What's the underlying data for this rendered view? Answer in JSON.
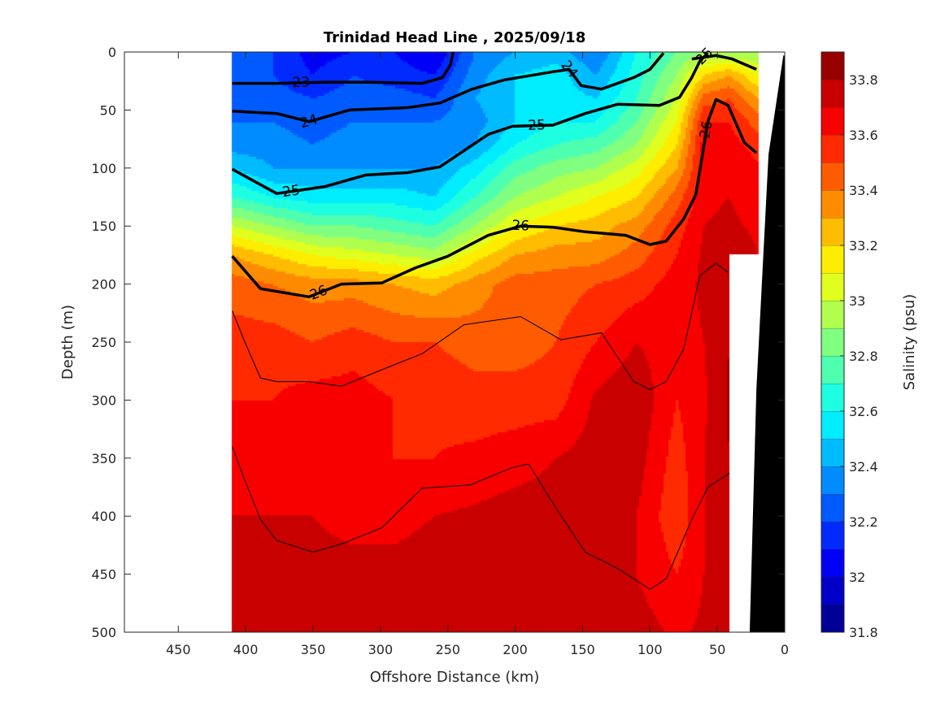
{
  "chart_data": {
    "type": "heatmap",
    "subtype": "filled-contour-section",
    "title": "Trinidad Head Line , 2025/09/18",
    "xlabel": "Offshore Distance (km)",
    "ylabel": "Depth (m)",
    "colorbar_label": "Salinity (psu)",
    "colormap": "jet",
    "xlim": [
      0,
      490
    ],
    "x_reversed": true,
    "ylim": [
      0,
      500
    ],
    "y_reversed": true,
    "clim": [
      31.8,
      33.9
    ],
    "level_step": 0.1,
    "xticks": [
      450,
      400,
      350,
      300,
      250,
      200,
      150,
      100,
      50,
      0
    ],
    "yticks": [
      0,
      50,
      100,
      150,
      200,
      250,
      300,
      350,
      400,
      450,
      500
    ],
    "cticks": [
      "31.8",
      "32",
      "32.2",
      "32.4",
      "32.6",
      "32.8",
      "33",
      "33.2",
      "33.4",
      "33.6",
      "33.8"
    ],
    "grid": false,
    "salinity": {
      "distance_km": [
        410,
        380,
        350,
        320,
        290,
        260,
        230,
        200,
        170,
        140,
        110,
        80,
        60,
        41,
        20
      ],
      "depth_m": [
        0,
        20,
        40,
        60,
        80,
        100,
        125,
        150,
        175,
        200,
        250,
        300,
        350,
        400,
        450,
        500
      ],
      "values": [
        [
          32.3,
          32.3,
          32.3,
          32.3,
          32.35,
          32.5,
          32.7,
          33.0,
          33.3,
          33.45,
          33.55,
          33.6,
          33.65,
          33.7,
          33.75,
          33.8
        ],
        [
          32.2,
          32.2,
          32.25,
          32.3,
          32.35,
          32.4,
          32.6,
          32.9,
          33.2,
          33.4,
          33.55,
          33.6,
          33.65,
          33.7,
          33.72,
          33.75
        ],
        [
          32.05,
          32.1,
          32.2,
          32.25,
          32.3,
          32.4,
          32.55,
          32.8,
          33.1,
          33.35,
          33.5,
          33.65,
          33.7,
          33.7,
          33.72,
          33.75
        ],
        [
          32.1,
          32.2,
          32.25,
          32.3,
          32.35,
          32.4,
          32.55,
          32.8,
          33.05,
          33.35,
          33.55,
          33.65,
          33.65,
          33.68,
          33.72,
          33.75
        ],
        [
          32.1,
          32.15,
          32.25,
          32.3,
          32.35,
          32.4,
          32.55,
          32.75,
          33.0,
          33.3,
          33.5,
          33.6,
          33.6,
          33.65,
          33.75,
          33.78
        ],
        [
          32.0,
          32.1,
          32.2,
          32.3,
          32.3,
          32.4,
          32.5,
          32.7,
          32.95,
          33.25,
          33.5,
          33.58,
          33.6,
          33.7,
          33.78,
          33.8
        ],
        [
          32.3,
          32.35,
          32.4,
          32.35,
          32.4,
          32.55,
          32.7,
          32.9,
          33.15,
          33.35,
          33.45,
          33.55,
          33.62,
          33.72,
          33.78,
          33.8
        ],
        [
          32.4,
          32.5,
          32.5,
          32.5,
          32.6,
          32.75,
          32.9,
          33.1,
          33.3,
          33.45,
          33.45,
          33.55,
          33.65,
          33.75,
          33.78,
          33.8
        ],
        [
          32.45,
          32.55,
          32.55,
          32.6,
          32.7,
          32.85,
          33.0,
          33.2,
          33.35,
          33.45,
          33.5,
          33.55,
          33.7,
          33.75,
          33.75,
          33.75
        ],
        [
          32.3,
          32.4,
          32.5,
          32.6,
          32.75,
          32.9,
          33.1,
          33.25,
          33.35,
          33.5,
          33.6,
          33.72,
          33.75,
          33.72,
          33.7,
          33.72
        ],
        [
          32.6,
          32.65,
          32.7,
          32.8,
          32.9,
          33.05,
          33.2,
          33.35,
          33.45,
          33.55,
          33.7,
          33.78,
          33.75,
          33.7,
          33.7,
          33.75
        ],
        [
          32.8,
          32.9,
          33.0,
          33.1,
          33.2,
          33.3,
          33.45,
          33.55,
          33.6,
          33.65,
          33.65,
          33.6,
          33.55,
          33.52,
          33.6,
          33.68
        ],
        [
          32.9,
          33.2,
          33.45,
          33.6,
          33.65,
          33.65,
          33.68,
          33.7,
          33.72,
          33.72,
          33.7,
          33.68,
          33.7,
          33.7,
          33.7,
          33.72
        ],
        [
          32.9,
          33.3,
          33.5,
          33.6,
          33.65,
          33.7,
          33.7,
          33.72,
          33.78,
          33.8,
          33.8,
          33.82,
          33.8,
          33.75,
          33.7,
          33.7
        ],
        [
          32.9,
          33.1,
          33.3,
          33.45,
          33.55,
          33.62,
          33.65,
          33.68,
          33.7,
          null,
          null,
          null,
          null,
          null,
          null,
          null
        ]
      ]
    },
    "density_contours": [
      {
        "level": "23",
        "points": [
          [
            410,
            27
          ],
          [
            377,
            27
          ],
          [
            341,
            26
          ],
          [
            311,
            26
          ],
          [
            269,
            27
          ],
          [
            254,
            22
          ],
          [
            248,
            11
          ],
          [
            246,
            0
          ]
        ]
      },
      {
        "level": "24",
        "points": [
          [
            410,
            51
          ],
          [
            377,
            53
          ],
          [
            353,
            60
          ],
          [
            323,
            50
          ],
          [
            280,
            48
          ],
          [
            256,
            44
          ],
          [
            232,
            32
          ],
          [
            208,
            24
          ],
          [
            172,
            17
          ],
          [
            160,
            15
          ],
          [
            151,
            29
          ],
          [
            136,
            32
          ],
          [
            112,
            22
          ],
          [
            100,
            15
          ],
          [
            90,
            1
          ]
        ]
      },
      {
        "level": "24",
        "points": [
          [
            69,
            6
          ],
          [
            51,
            3
          ],
          [
            39,
            6
          ],
          [
            21,
            15
          ]
        ]
      },
      {
        "level": "25",
        "points": [
          [
            410,
            101
          ],
          [
            377,
            122
          ],
          [
            341,
            116
          ],
          [
            311,
            106
          ],
          [
            280,
            104
          ],
          [
            256,
            99
          ],
          [
            238,
            85
          ],
          [
            220,
            71
          ],
          [
            202,
            64
          ],
          [
            172,
            63
          ],
          [
            148,
            53
          ],
          [
            124,
            45
          ],
          [
            93,
            46
          ],
          [
            78,
            39
          ],
          [
            69,
            22
          ],
          [
            63,
            8
          ],
          [
            57,
            1
          ]
        ]
      },
      {
        "level": "26",
        "points": [
          [
            410,
            176
          ],
          [
            389,
            204
          ],
          [
            353,
            211
          ],
          [
            329,
            200
          ],
          [
            299,
            199
          ],
          [
            274,
            186
          ],
          [
            250,
            176
          ],
          [
            220,
            158
          ],
          [
            196,
            150
          ],
          [
            172,
            151
          ],
          [
            148,
            155
          ],
          [
            118,
            158
          ],
          [
            100,
            166
          ],
          [
            88,
            163
          ],
          [
            75,
            144
          ],
          [
            66,
            123
          ],
          [
            62,
            95
          ],
          [
            57,
            60
          ],
          [
            51,
            41
          ],
          [
            42,
            46
          ],
          [
            30,
            78
          ],
          [
            21,
            87
          ]
        ]
      }
    ],
    "thin_contours": [
      [
        [
          410,
          223
        ],
        [
          401,
          249
        ],
        [
          389,
          281
        ],
        [
          377,
          284
        ],
        [
          353,
          284
        ],
        [
          329,
          288
        ],
        [
          293,
          271
        ],
        [
          269,
          260
        ],
        [
          238,
          235
        ],
        [
          196,
          228
        ],
        [
          166,
          248
        ],
        [
          136,
          242
        ],
        [
          112,
          284
        ],
        [
          100,
          291
        ],
        [
          88,
          284
        ],
        [
          75,
          256
        ],
        [
          63,
          193
        ],
        [
          51,
          182
        ],
        [
          42,
          190
        ]
      ],
      [
        [
          410,
          340
        ],
        [
          401,
          368
        ],
        [
          389,
          403
        ],
        [
          377,
          421
        ],
        [
          350,
          431
        ],
        [
          329,
          424
        ],
        [
          299,
          410
        ],
        [
          269,
          376
        ],
        [
          233,
          373
        ],
        [
          202,
          358
        ],
        [
          190,
          355
        ],
        [
          172,
          389
        ],
        [
          148,
          431
        ],
        [
          124,
          445
        ],
        [
          100,
          463
        ],
        [
          88,
          454
        ],
        [
          69,
          403
        ],
        [
          57,
          375
        ],
        [
          41,
          363
        ]
      ]
    ],
    "bathymetry": [
      [
        1,
        3
      ],
      [
        12,
        88
      ],
      [
        21,
        290
      ],
      [
        26,
        500
      ],
      [
        0,
        500
      ],
      [
        0,
        3
      ]
    ],
    "bathymetry_color": "#000000"
  }
}
